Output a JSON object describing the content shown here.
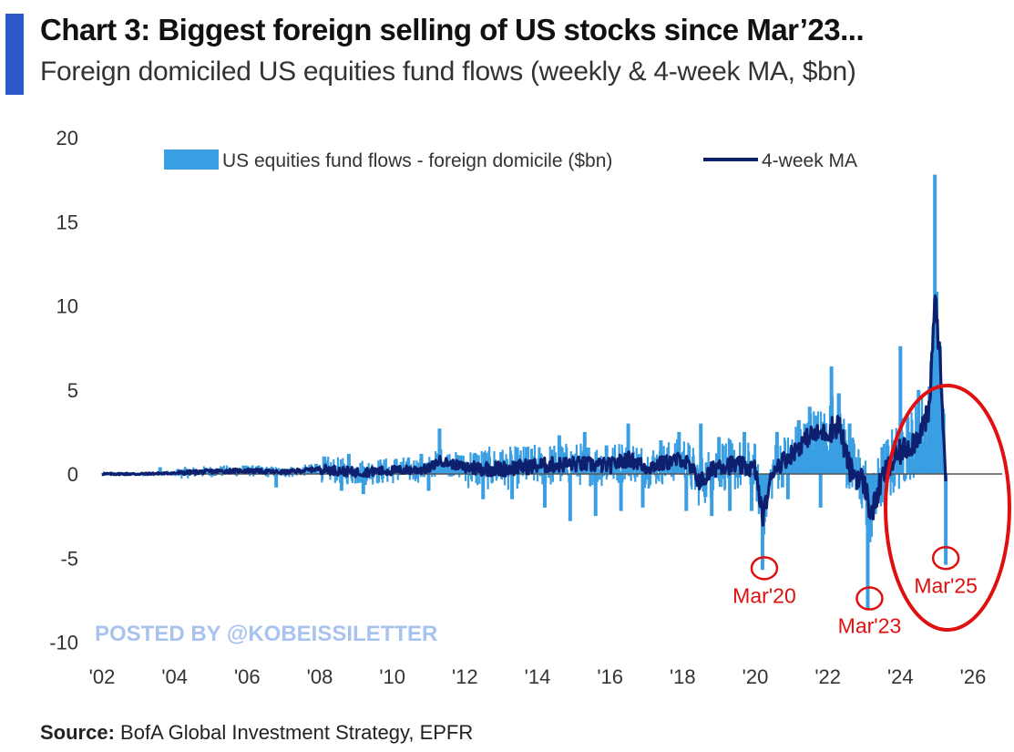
{
  "header": {
    "title": "Chart 3: Biggest foreign selling of US stocks since Mar’23...",
    "subtitle": "Foreign domiciled US equities fund flows (weekly & 4-week MA, $bn)"
  },
  "footer": {
    "source_label": "Source:",
    "source_text": "BofA Global Investment Strategy, EPFR"
  },
  "watermark": "POSTED BY @KOBEISSILETTER",
  "colors": {
    "bars": "#3a9ee3",
    "ma_line": "#0e1f6e",
    "annotation": "#e01010",
    "watermark": "#a9c3ef",
    "title_accent": "#2b57c9"
  },
  "chart_data": {
    "type": "bar",
    "title": "",
    "xlabel": "",
    "ylabel": "",
    "xlim": [
      2002,
      2027
    ],
    "ylim": [
      -10,
      20
    ],
    "y_ticks": [
      20,
      15,
      10,
      5,
      0,
      -5,
      -10
    ],
    "x_ticks": [
      2002,
      2004,
      2006,
      2008,
      2010,
      2012,
      2014,
      2016,
      2018,
      2020,
      2022,
      2024,
      2026
    ],
    "x_tick_labels": [
      "'02",
      "'04",
      "'06",
      "'08",
      "'10",
      "'12",
      "'14",
      "'16",
      "'18",
      "'20",
      "'22",
      "'24",
      "'26"
    ],
    "grid": false,
    "legend_position": "top",
    "series": [
      {
        "name": "US equities fund flows - foreign domicile ($bn)",
        "type": "bar",
        "x": [
          2003.6,
          2005.9,
          2006.8,
          2007.9,
          2008.6,
          2008.8,
          2009.2,
          2010.1,
          2010.8,
          2011.0,
          2011.3,
          2011.9,
          2012.5,
          2013.0,
          2013.3,
          2013.7,
          2014.2,
          2014.6,
          2014.9,
          2015.3,
          2015.6,
          2015.9,
          2016.3,
          2016.5,
          2016.9,
          2017.4,
          2017.9,
          2018.1,
          2018.5,
          2018.8,
          2019.0,
          2019.3,
          2019.7,
          2019.9,
          2020.2,
          2020.6,
          2020.9,
          2021.2,
          2021.5,
          2021.8,
          2022.1,
          2022.3,
          2022.6,
          2022.9,
          2023.1,
          2023.2,
          2023.5,
          2023.8,
          2024.0,
          2024.2,
          2024.5,
          2024.8,
          2024.95,
          2025.05,
          2025.15,
          2025.25
        ],
        "values": [
          0.4,
          0.5,
          -0.8,
          0.6,
          -1.0,
          1.2,
          -1.2,
          0.9,
          1.2,
          -1.0,
          2.7,
          1.1,
          -1.5,
          1.3,
          -1.5,
          1.6,
          -2.0,
          2.3,
          -2.8,
          2.5,
          -2.5,
          1.7,
          -2.2,
          3.0,
          -2.0,
          2.0,
          2.5,
          -2.2,
          3.0,
          -2.5,
          2.2,
          -2.2,
          2.5,
          -2.2,
          -5.7,
          2.5,
          -1.5,
          3.2,
          4.0,
          -2.0,
          6.4,
          4.8,
          3.0,
          -1.5,
          -8.0,
          -2.6,
          1.6,
          2.0,
          7.6,
          3.4,
          5.0,
          5.2,
          17.8,
          6.0,
          4.0,
          -5.4
        ],
        "note": "Dense weekly series; listed values are the distinguishable peaks/troughs, intermediate weeks are approximated around the 4-week MA."
      },
      {
        "name": "4-week MA",
        "type": "line",
        "x": [
          2002.0,
          2003.0,
          2004.0,
          2005.0,
          2006.0,
          2007.0,
          2008.0,
          2009.0,
          2010.0,
          2011.0,
          2011.3,
          2012.0,
          2013.0,
          2014.0,
          2015.0,
          2016.0,
          2016.5,
          2017.0,
          2018.0,
          2018.5,
          2019.0,
          2019.5,
          2020.0,
          2020.2,
          2020.5,
          2021.0,
          2021.5,
          2022.0,
          2022.3,
          2022.6,
          2023.0,
          2023.2,
          2023.5,
          2024.0,
          2024.4,
          2024.8,
          2024.95,
          2025.1,
          2025.25
        ],
        "values": [
          0.0,
          0.0,
          0.05,
          0.15,
          0.2,
          0.1,
          0.3,
          0.1,
          0.2,
          0.3,
          0.8,
          0.4,
          0.3,
          0.5,
          0.6,
          0.5,
          0.9,
          0.4,
          0.9,
          -0.5,
          0.6,
          0.5,
          0.3,
          -2.6,
          0.3,
          1.2,
          2.3,
          2.5,
          3.0,
          0.3,
          -0.5,
          -2.5,
          -0.2,
          1.3,
          2.0,
          3.6,
          10.8,
          6.4,
          0.0
        ]
      }
    ],
    "annotations": [
      {
        "label": "Mar'20",
        "x": 2020.25,
        "y": -5.6
      },
      {
        "label": "Mar'23",
        "x": 2023.15,
        "y": -7.4
      },
      {
        "label": "Mar'25",
        "x": 2025.25,
        "y": -5.0
      }
    ]
  }
}
